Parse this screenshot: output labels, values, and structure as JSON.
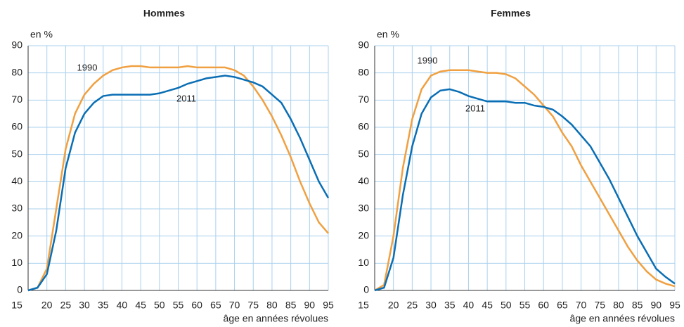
{
  "chart_data": [
    {
      "type": "line",
      "title": "Hommes",
      "ylabel": "en %",
      "xlabel": "âge en années révolues",
      "x": [
        15,
        17.5,
        20,
        22.5,
        25,
        27.5,
        30,
        32.5,
        35,
        37.5,
        40,
        42.5,
        45,
        47.5,
        50,
        52.5,
        55,
        57.5,
        60,
        62.5,
        65,
        67.5,
        70,
        72.5,
        75,
        77.5,
        80,
        82.5,
        85,
        87.5,
        90,
        92.5,
        95
      ],
      "xlim": [
        15,
        95
      ],
      "xticks": [
        15,
        20,
        25,
        30,
        35,
        40,
        45,
        50,
        55,
        60,
        65,
        70,
        75,
        80,
        85,
        90,
        95
      ],
      "ylim": [
        0,
        90
      ],
      "yticks": [
        0,
        10,
        20,
        30,
        40,
        50,
        60,
        70,
        80,
        90
      ],
      "grid": true,
      "series": [
        {
          "name": "1990",
          "color": "#f0a040",
          "values": [
            0,
            1,
            8,
            30,
            52,
            65,
            72,
            76,
            79,
            81,
            82,
            82.5,
            82.5,
            82,
            82,
            82,
            82,
            82.5,
            82,
            82,
            82,
            82,
            81,
            79,
            75,
            70,
            64,
            57,
            49,
            40,
            32,
            25,
            21
          ]
        },
        {
          "name": "2011",
          "color": "#0a6eb4",
          "values": [
            0,
            1,
            6,
            22,
            45,
            58,
            65,
            69,
            71.5,
            72,
            72,
            72,
            72,
            72,
            72.5,
            73.5,
            74.5,
            76,
            77,
            78,
            78.5,
            79,
            78.5,
            77.5,
            76.5,
            75,
            72,
            69,
            63,
            56,
            48,
            40,
            34
          ]
        }
      ]
    },
    {
      "type": "line",
      "title": "Femmes",
      "ylabel": "en %",
      "xlabel": "âge en années révolues",
      "x": [
        15,
        17.5,
        20,
        22.5,
        25,
        27.5,
        30,
        32.5,
        35,
        37.5,
        40,
        42.5,
        45,
        47.5,
        50,
        52.5,
        55,
        57.5,
        60,
        62.5,
        65,
        67.5,
        70,
        72.5,
        75,
        77.5,
        80,
        82.5,
        85,
        87.5,
        90,
        92.5,
        95
      ],
      "xlim": [
        15,
        95
      ],
      "xticks": [
        15,
        20,
        25,
        30,
        35,
        40,
        45,
        50,
        55,
        60,
        65,
        70,
        75,
        80,
        85,
        90,
        95
      ],
      "ylim": [
        0,
        90
      ],
      "yticks": [
        0,
        10,
        20,
        30,
        40,
        50,
        60,
        70,
        80,
        90
      ],
      "grid": true,
      "series": [
        {
          "name": "1990",
          "color": "#f0a040",
          "values": [
            0,
            2,
            20,
            45,
            63,
            74,
            79,
            80.5,
            81,
            81,
            81,
            80.5,
            80,
            80,
            79.5,
            78,
            75,
            72,
            68,
            64,
            58,
            53,
            46,
            40,
            34,
            28,
            22,
            16,
            11,
            7,
            4,
            2.5,
            1.5
          ]
        },
        {
          "name": "2011",
          "color": "#0a6eb4",
          "values": [
            0,
            1,
            12,
            35,
            53,
            65,
            71,
            73.5,
            74,
            73,
            71.5,
            70.5,
            69.5,
            69.5,
            69.5,
            69,
            69,
            68,
            67.5,
            66.5,
            64,
            61,
            57,
            53,
            47,
            41,
            34,
            27,
            20,
            14,
            8,
            5,
            2.5
          ]
        }
      ]
    }
  ]
}
